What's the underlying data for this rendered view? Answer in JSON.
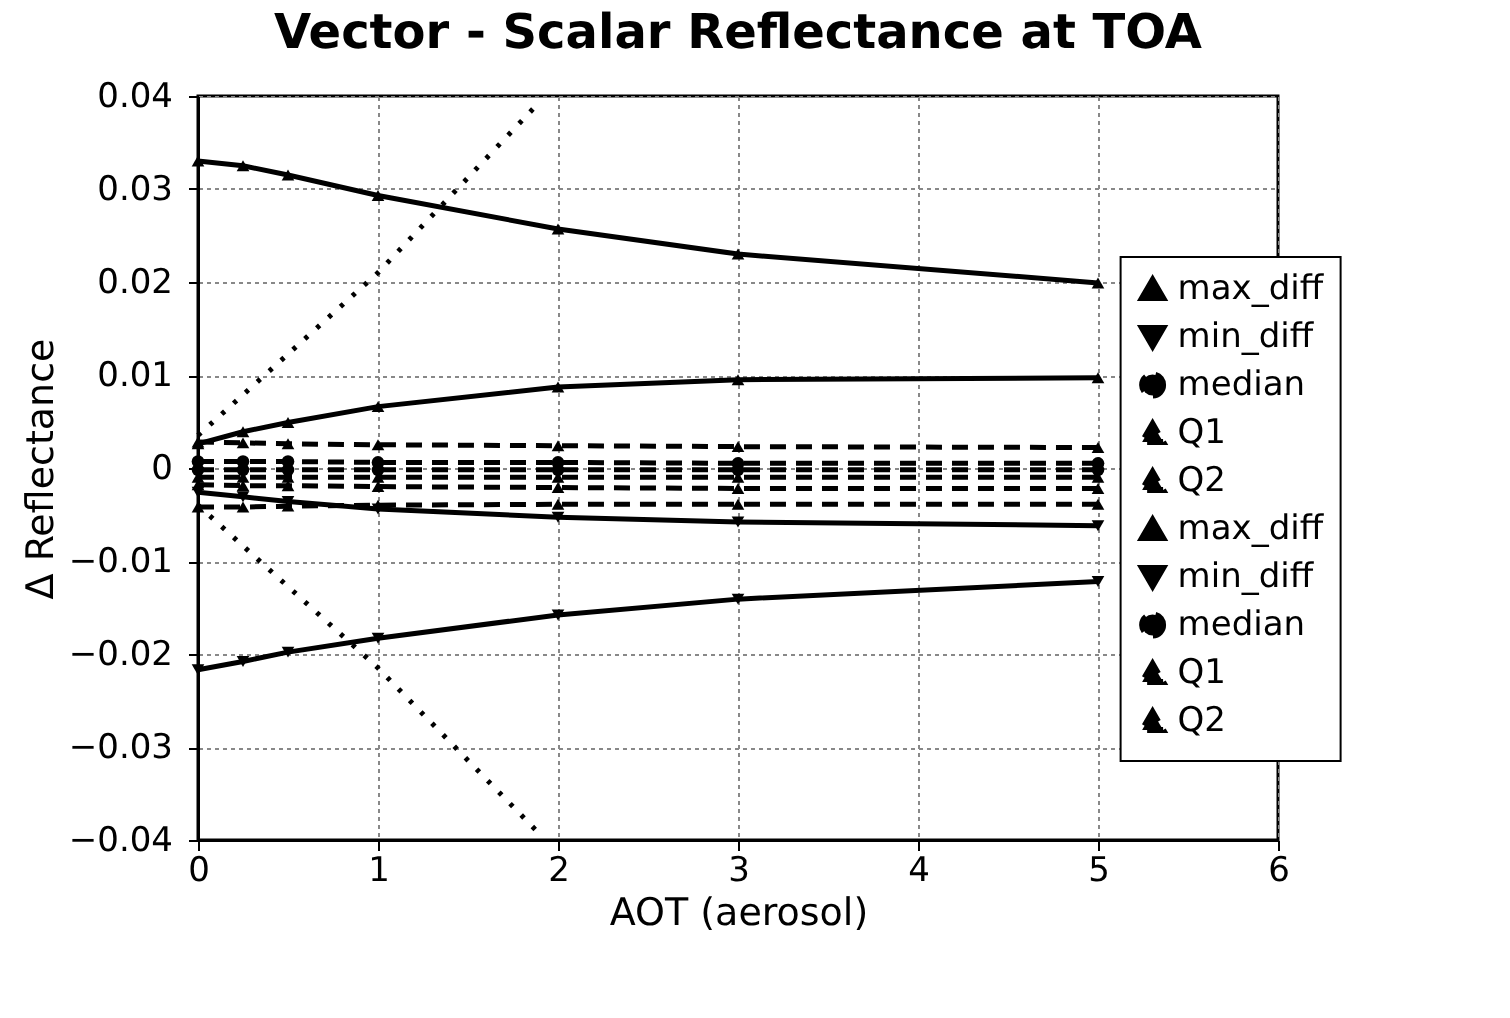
{
  "chart_data": {
    "type": "line",
    "title": "Vector - Scalar Reflectance at TOA",
    "xlabel": "AOT (aerosol)",
    "ylabel": "Δ Reflectance",
    "x": [
      0,
      0.25,
      0.5,
      1,
      2,
      3,
      5
    ],
    "xlim": [
      0,
      6
    ],
    "xticks": [
      0,
      1,
      2,
      3,
      4,
      5,
      6
    ],
    "ylim": [
      -0.04,
      0.04
    ],
    "yticks": [
      -0.04,
      -0.03,
      -0.02,
      -0.01,
      0,
      0.01,
      0.02,
      0.03,
      0.04
    ],
    "grid": true,
    "legend": "right",
    "series": [
      {
        "name": "max_diff",
        "color": "#000000",
        "marker": "triangle",
        "line_style": "solid",
        "values": [
          0.033,
          0.0325,
          0.0315,
          0.0293,
          0.0257,
          0.023,
          0.0199
        ]
      },
      {
        "name": "min_diff",
        "color": "#000000",
        "marker": "triangle-down",
        "line_style": "solid",
        "values": [
          -0.0217,
          -0.0208,
          -0.0198,
          -0.0183,
          -0.0158,
          -0.0141,
          -0.0122
        ]
      },
      {
        "name": "median",
        "color": "#000000",
        "marker": "circle",
        "line_style": "dashed",
        "values": [
          0.0007,
          0.0007,
          0.0007,
          0.0006,
          0.0006,
          0.0005,
          0.0005
        ]
      },
      {
        "name": "Q1",
        "color": "#000000",
        "marker": "triangle",
        "line_style": "dashed",
        "values": [
          -0.0042,
          -0.0042,
          -0.0041,
          -0.004,
          -0.0039,
          -0.0039,
          -0.0039
        ]
      },
      {
        "name": "Q2",
        "color": "#000000",
        "marker": "triangle",
        "line_style": "dashed",
        "values": [
          0.0028,
          0.0027,
          0.0026,
          0.0025,
          0.0024,
          0.0023,
          0.0022
        ]
      },
      {
        "name": "max_diff",
        "color": "#000000",
        "marker": "triangle",
        "line_style": "solid",
        "values": [
          0.0026,
          0.0039,
          0.0049,
          0.0066,
          0.0087,
          0.0095,
          0.0097
        ]
      },
      {
        "name": "min_diff",
        "color": "#000000",
        "marker": "triangle-down",
        "line_style": "solid",
        "values": [
          -0.0026,
          -0.0031,
          -0.0036,
          -0.0044,
          -0.0053,
          -0.0058,
          -0.0062
        ]
      },
      {
        "name": "median",
        "color": "#000000",
        "marker": "circle",
        "line_style": "dashed",
        "values": [
          -0.0002,
          -0.0002,
          -0.0002,
          -0.0002,
          -0.0002,
          -0.0002,
          -0.0002
        ]
      },
      {
        "name": "Q1",
        "color": "#000000",
        "marker": "triangle",
        "line_style": "dashed",
        "values": [
          -0.0018,
          -0.0019,
          -0.0019,
          -0.002,
          -0.0021,
          -0.0022,
          -0.0022
        ]
      },
      {
        "name": "Q2",
        "color": "#000000",
        "marker": "triangle",
        "line_style": "dashed",
        "values": [
          -0.001,
          -0.001,
          -0.001,
          -0.001,
          -0.001,
          -0.001,
          -0.001
        ]
      },
      {
        "color": "#000000",
        "marker": "none",
        "line_style": "dotted",
        "x": [
          0,
          1,
          1.88
        ],
        "values": [
          0.0035,
          0.021,
          0.039
        ]
      },
      {
        "color": "#000000",
        "marker": "none",
        "line_style": "dotted",
        "x": [
          0,
          1,
          1.88
        ],
        "values": [
          -0.004,
          -0.0215,
          -0.039
        ]
      }
    ]
  }
}
